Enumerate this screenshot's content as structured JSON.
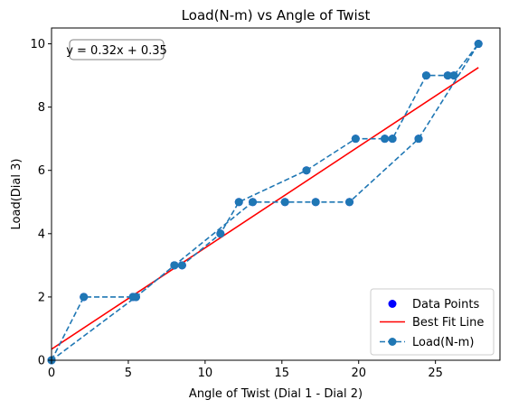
{
  "chart_data": {
    "type": "line",
    "title": "Load(N-m) vs Angle of Twist",
    "xlabel": "Angle of Twist (Dial 1 - Dial 2)",
    "ylabel": "Load(Dial  3)",
    "xlim": [
      0,
      29.2
    ],
    "ylim": [
      0,
      10.5
    ],
    "xticks": [
      0,
      5,
      10,
      15,
      20,
      25
    ],
    "yticks": [
      0,
      2,
      4,
      6,
      8,
      10
    ],
    "grid": false,
    "legend_position": "bottom-right",
    "annotation": "y = 0.32x + 0.35",
    "series": [
      {
        "name": "Data Points",
        "kind": "scatter",
        "color": "#0000ff",
        "x": [
          0,
          2.1,
          5.3,
          5.5,
          8.0,
          8.5,
          11.0,
          12.2,
          13.1,
          15.2,
          16.6,
          17.2,
          19.4,
          19.8,
          21.7,
          22.2,
          23.9,
          24.4,
          25.8,
          26.2,
          27.8
        ],
        "y": [
          0,
          2,
          2,
          2,
          3,
          3,
          4,
          5,
          5,
          5,
          6,
          5,
          5,
          7,
          7,
          7,
          7,
          9,
          9,
          9,
          10
        ]
      },
      {
        "name": "Best Fit Line",
        "kind": "line",
        "color": "#ff0000",
        "x": [
          0,
          27.8
        ],
        "y": [
          0.35,
          9.25
        ]
      },
      {
        "name": "Load(N-m)",
        "kind": "dashed-line-markers",
        "color": "#1f77b4",
        "x": [
          0,
          2.1,
          5.3,
          5.5,
          8.0,
          8.5,
          11.0,
          12.2,
          16.6,
          19.8,
          21.7,
          22.2,
          24.4,
          25.8,
          26.2,
          27.8,
          23.9,
          19.4,
          17.2,
          15.2,
          13.1,
          8.0,
          5.5,
          0
        ],
        "y": [
          0,
          2,
          2,
          2,
          3,
          3,
          4,
          5,
          6,
          7,
          7,
          7,
          9,
          9,
          9,
          10,
          7,
          5,
          5,
          5,
          5,
          3,
          2,
          0
        ]
      }
    ]
  }
}
